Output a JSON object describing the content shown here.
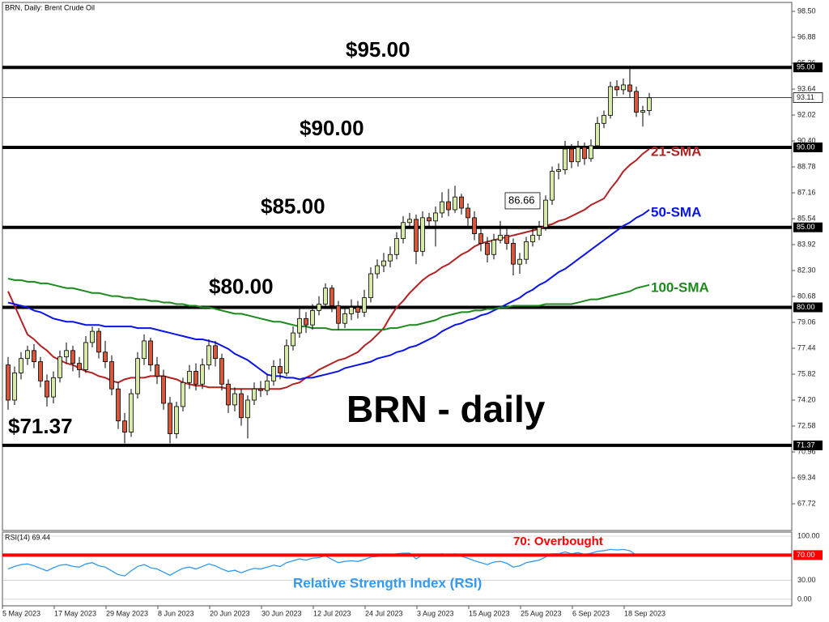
{
  "chart_data": [
    {
      "type": "candlestick",
      "title": "BRN, Daily:  Brent Crude Oil",
      "categories": [
        "5 May 2023",
        null,
        null,
        null,
        null,
        null,
        null,
        null,
        "17 May 2023",
        null,
        null,
        null,
        null,
        null,
        null,
        null,
        "29 May 2023",
        null,
        null,
        null,
        null,
        null,
        null,
        null,
        "8 Jun 2023",
        null,
        null,
        null,
        null,
        null,
        null,
        null,
        "20 Jun 2023",
        null,
        null,
        null,
        null,
        null,
        null,
        null,
        "30 Jun 2023",
        null,
        null,
        null,
        null,
        null,
        null,
        null,
        "12 Jul 2023",
        null,
        null,
        null,
        null,
        null,
        null,
        null,
        "24 Jul 2023",
        null,
        null,
        null,
        null,
        null,
        null,
        null,
        "3 Aug 2023",
        null,
        null,
        null,
        null,
        null,
        null,
        null,
        "15 Aug 2023",
        null,
        null,
        null,
        null,
        null,
        null,
        null,
        "25 Aug 2023",
        null,
        null,
        null,
        null,
        null,
        null,
        null,
        "6 Sep 2023",
        null,
        null,
        null,
        null,
        null,
        null,
        null,
        "18 Sep 2023",
        null,
        null,
        null
      ],
      "open": [
        76.4,
        74.2,
        75.9,
        76.8,
        77.3,
        76.6,
        75.4,
        74.4,
        75.6,
        76.9,
        77.3,
        76.5,
        76.1,
        77.8,
        78.5,
        77.2,
        76.6,
        74.9,
        72.9,
        72.2,
        74.6,
        76.8,
        77.9,
        76.4,
        75.7,
        74.0,
        72.1,
        73.8,
        75.3,
        76.0,
        75.2,
        76.4,
        77.6,
        76.8,
        75.2,
        73.9,
        74.6,
        73.1,
        74.2,
        74.9,
        74.8,
        75.4,
        76.3,
        75.9,
        77.6,
        78.4,
        79.3,
        78.9,
        79.8,
        80.2,
        81.2,
        80.1,
        79.0,
        79.6,
        80.0,
        79.7,
        80.6,
        82.1,
        82.6,
        82.9,
        83.3,
        84.3,
        85.3,
        85.5,
        83.5,
        85.6,
        85.4,
        85.9,
        86.6,
        86.1,
        86.9,
        86.2,
        85.6,
        84.6,
        84.0,
        83.3,
        84.2,
        84.5,
        84.0,
        82.7,
        83.0,
        84.1,
        84.5,
        85.0,
        86.7,
        88.5,
        88.6,
        89.9,
        89.1,
        90.0,
        89.3,
        90.1,
        91.5,
        92.0,
        93.8,
        93.6,
        93.9,
        93.5,
        92.2,
        92.3
      ],
      "high": [
        76.9,
        76.3,
        77.2,
        77.6,
        77.7,
        76.9,
        75.8,
        76.0,
        77.3,
        77.8,
        77.6,
        76.9,
        78.2,
        78.8,
        78.7,
        77.9,
        77.0,
        75.3,
        73.4,
        74.9,
        77.2,
        78.3,
        78.1,
        76.9,
        76.1,
        74.4,
        74.1,
        75.6,
        76.4,
        76.5,
        76.8,
        78.0,
        77.9,
        77.1,
        75.5,
        75.0,
        74.9,
        74.5,
        75.3,
        75.4,
        75.8,
        76.7,
        76.8,
        78.0,
        78.8,
        79.9,
        79.7,
        80.2,
        80.7,
        81.5,
        81.4,
        80.4,
        80.0,
        80.5,
        80.4,
        81.1,
        82.5,
        83.0,
        83.4,
        83.8,
        84.7,
        85.7,
        85.9,
        85.8,
        86.0,
        85.9,
        86.3,
        87.2,
        87.4,
        87.6,
        87.1,
        86.5,
        86.0,
        85.0,
        84.4,
        84.6,
        85.4,
        84.9,
        84.3,
        83.4,
        84.4,
        84.9,
        85.4,
        87.0,
        88.8,
        89.0,
        90.4,
        90.2,
        90.4,
        90.3,
        90.5,
        91.9,
        92.3,
        94.1,
        94.2,
        94.3,
        94.9,
        93.8,
        92.6,
        93.4
      ],
      "low": [
        73.6,
        73.9,
        75.5,
        76.4,
        76.2,
        75.0,
        73.8,
        74.0,
        75.3,
        76.5,
        76.0,
        75.6,
        75.9,
        77.5,
        76.8,
        76.2,
        74.5,
        72.4,
        71.5,
        71.9,
        74.3,
        76.4,
        76.0,
        75.2,
        73.6,
        71.5,
        71.8,
        73.5,
        74.9,
        74.8,
        74.9,
        76.1,
        76.3,
        74.8,
        73.4,
        73.5,
        72.6,
        71.8,
        73.9,
        74.4,
        74.5,
        75.1,
        75.5,
        75.7,
        77.3,
        78.1,
        78.4,
        78.6,
        79.5,
        79.9,
        79.7,
        78.6,
        78.7,
        79.2,
        79.3,
        79.4,
        80.3,
        81.8,
        82.2,
        82.5,
        83.0,
        84.0,
        84.9,
        82.7,
        83.2,
        84.9,
        83.8,
        85.6,
        85.7,
        85.9,
        85.8,
        85.1,
        84.2,
        83.5,
        82.8,
        83.0,
        84.0,
        83.6,
        82.0,
        82.1,
        82.7,
        83.8,
        84.2,
        84.8,
        86.4,
        88.0,
        88.3,
        88.7,
        88.8,
        88.9,
        89.1,
        89.9,
        91.2,
        91.8,
        93.2,
        93.3,
        93.1,
        91.9,
        91.3,
        92.0
      ],
      "close": [
        74.2,
        75.9,
        76.8,
        77.3,
        76.6,
        75.4,
        74.4,
        75.6,
        76.9,
        77.3,
        76.5,
        76.1,
        77.8,
        78.5,
        77.2,
        76.6,
        74.9,
        72.9,
        72.2,
        74.6,
        76.8,
        77.9,
        76.4,
        75.7,
        74.0,
        72.1,
        73.8,
        75.3,
        76.0,
        75.2,
        76.4,
        77.6,
        76.8,
        75.2,
        73.9,
        74.6,
        73.1,
        74.2,
        74.9,
        74.8,
        75.4,
        76.3,
        75.9,
        77.6,
        78.4,
        79.3,
        78.9,
        79.8,
        80.2,
        81.2,
        80.1,
        79.0,
        79.6,
        80.0,
        79.7,
        80.6,
        82.1,
        82.6,
        82.9,
        83.3,
        84.3,
        85.3,
        85.5,
        83.5,
        85.6,
        85.4,
        85.9,
        86.6,
        86.1,
        86.9,
        86.2,
        85.6,
        84.6,
        84.0,
        83.3,
        84.2,
        84.5,
        84.0,
        82.7,
        83.0,
        84.1,
        84.5,
        85.0,
        86.7,
        88.5,
        88.6,
        89.9,
        89.1,
        90.0,
        89.3,
        90.1,
        91.5,
        92.0,
        93.8,
        93.6,
        93.9,
        93.5,
        92.2,
        92.3,
        93.1
      ],
      "up_color": "#d6e9a9",
      "down_color": "#d4583c",
      "series": [
        {
          "name": "21-SMA",
          "color": "#b22222",
          "values": [
            81.0,
            80.1,
            79.2,
            78.3,
            78.0,
            77.6,
            77.3,
            76.9,
            76.7,
            76.5,
            76.4,
            76.2,
            76.0,
            75.9,
            75.7,
            75.6,
            75.4,
            75.3,
            75.5,
            75.6,
            75.6,
            75.6,
            75.7,
            75.7,
            75.7,
            75.6,
            75.5,
            75.3,
            75.2,
            75.1,
            75.1,
            75.0,
            75.0,
            75.0,
            74.9,
            74.9,
            74.9,
            74.9,
            74.9,
            74.9,
            74.9,
            74.9,
            74.9,
            75.0,
            75.2,
            75.3,
            75.6,
            75.8,
            76.1,
            76.3,
            76.5,
            76.7,
            76.8,
            77.0,
            77.2,
            77.6,
            77.9,
            78.3,
            78.7,
            79.4,
            80.0,
            80.4,
            80.9,
            81.3,
            81.7,
            82.0,
            82.2,
            82.5,
            82.7,
            83.0,
            83.3,
            83.5,
            83.8,
            84.0,
            84.1,
            84.2,
            84.3,
            84.4,
            84.5,
            84.6,
            84.7,
            84.8,
            84.9,
            85.1,
            85.2,
            85.4,
            85.5,
            85.7,
            85.9,
            86.1,
            86.4,
            86.6,
            86.8,
            87.4,
            87.9,
            88.5,
            88.9,
            89.2,
            89.6,
            89.9
          ]
        },
        {
          "name": "50-SMA",
          "color": "#0a14e6",
          "values": [
            80.3,
            80.2,
            80.1,
            80.0,
            79.8,
            79.7,
            79.5,
            79.3,
            79.2,
            79.1,
            79.1,
            79.0,
            78.9,
            78.9,
            78.9,
            78.8,
            78.8,
            78.8,
            78.8,
            78.8,
            78.7,
            78.7,
            78.7,
            78.6,
            78.5,
            78.4,
            78.3,
            78.2,
            78.1,
            78.0,
            78.0,
            77.9,
            77.8,
            77.6,
            77.4,
            77.1,
            76.9,
            76.7,
            76.4,
            76.1,
            75.8,
            75.7,
            75.7,
            75.6,
            75.6,
            75.5,
            75.6,
            75.6,
            75.7,
            75.8,
            75.9,
            76.0,
            76.2,
            76.3,
            76.4,
            76.5,
            76.6,
            76.8,
            76.9,
            77.0,
            77.2,
            77.3,
            77.5,
            77.6,
            77.8,
            78.0,
            78.2,
            78.5,
            78.7,
            78.9,
            79.0,
            79.2,
            79.3,
            79.5,
            79.6,
            79.8,
            80.0,
            80.2,
            80.4,
            80.6,
            80.9,
            81.1,
            81.4,
            81.6,
            81.9,
            82.2,
            82.4,
            82.7,
            83.0,
            83.3,
            83.6,
            83.9,
            84.2,
            84.5,
            84.8,
            85.1,
            85.3,
            85.6,
            85.8,
            86.1
          ]
        },
        {
          "name": "100-SMA",
          "color": "#1d8a1d",
          "values": [
            81.8,
            81.7,
            81.7,
            81.6,
            81.6,
            81.5,
            81.5,
            81.4,
            81.3,
            81.2,
            81.2,
            81.1,
            81.0,
            80.9,
            80.9,
            80.8,
            80.7,
            80.7,
            80.6,
            80.6,
            80.5,
            80.5,
            80.4,
            80.4,
            80.3,
            80.3,
            80.2,
            80.2,
            80.1,
            80.1,
            80.0,
            80.0,
            79.9,
            79.8,
            79.7,
            79.6,
            79.6,
            79.5,
            79.4,
            79.3,
            79.2,
            79.1,
            79.1,
            79.0,
            78.9,
            78.8,
            78.8,
            78.7,
            78.7,
            78.7,
            78.6,
            78.6,
            78.6,
            78.6,
            78.6,
            78.6,
            78.6,
            78.6,
            78.6,
            78.7,
            78.7,
            78.8,
            78.9,
            78.9,
            79.0,
            79.1,
            79.2,
            79.4,
            79.5,
            79.6,
            79.7,
            79.7,
            79.8,
            79.8,
            79.9,
            79.9,
            80.0,
            80.0,
            80.1,
            80.1,
            80.1,
            80.1,
            80.1,
            80.2,
            80.2,
            80.2,
            80.2,
            80.2,
            80.3,
            80.4,
            80.5,
            80.5,
            80.6,
            80.7,
            80.8,
            80.9,
            81.0,
            81.2,
            81.3,
            81.4
          ]
        }
      ],
      "ylim": [
        66.05,
        99.06
      ],
      "yticks": [
        {
          "value": 98.5,
          "label": "98.50"
        },
        96.88,
        95.26,
        93.64,
        92.02,
        {
          "value": 90.4,
          "label": "90.40"
        },
        88.78,
        87.16,
        85.54,
        83.92,
        {
          "value": 82.3,
          "label": "82.30"
        },
        80.68,
        79.06,
        77.44,
        75.82,
        {
          "value": 74.2,
          "label": "74.20"
        },
        72.58,
        70.96,
        69.34,
        67.72
      ],
      "levels": [
        {
          "value": 95,
          "label": "95.00",
          "annotation": "$95.00"
        },
        {
          "value": 90,
          "label": "90.00",
          "annotation": "$90.00"
        },
        {
          "value": 85,
          "label": "85.00",
          "annotation": "$85.00"
        },
        {
          "value": 80,
          "label": "80.00",
          "annotation": "$80.00"
        },
        {
          "value": 71.37,
          "label": "71.37",
          "annotation": "$71.37"
        }
      ],
      "last_price": 93.11,
      "callout": 86.66,
      "annotation": "BRN - daily"
    },
    {
      "type": "line",
      "title": "RSI(14) 69.44",
      "series": [
        {
          "name": "Relative Strength Index (RSI)",
          "color": "#3399ee",
          "values": [
            48,
            52,
            55,
            56,
            53,
            49,
            45,
            50,
            54,
            55,
            52,
            51,
            56,
            58,
            53,
            51,
            45,
            39,
            37,
            45,
            52,
            55,
            50,
            48,
            43,
            38,
            44,
            49,
            51,
            48,
            52,
            56,
            53,
            48,
            44,
            46,
            42,
            46,
            49,
            48,
            51,
            54,
            52,
            58,
            61,
            64,
            62,
            65,
            66,
            69,
            63,
            58,
            60,
            61,
            60,
            63,
            67,
            68,
            69,
            70,
            72,
            73,
            73,
            64,
            70,
            69,
            70,
            72,
            70,
            72,
            68,
            65,
            61,
            58,
            55,
            59,
            60,
            57,
            51,
            53,
            58,
            60,
            62,
            67,
            72,
            72,
            75,
            72,
            74,
            71,
            73,
            76,
            77,
            79,
            78,
            79,
            77,
            70,
            70,
            69.44
          ]
        }
      ],
      "ylim": [
        -10.3,
        106.4
      ],
      "yticks": [
        {
          "value": 100,
          "label": "100.00"
        },
        {
          "value": 70,
          "label": "70.00"
        },
        {
          "value": 30,
          "label": "30.00"
        },
        {
          "value": 0,
          "label": "0.00"
        }
      ],
      "level": {
        "value": 70,
        "label": "70.00",
        "annotation": "70: Overbought",
        "color": "#ff0000"
      }
    }
  ]
}
